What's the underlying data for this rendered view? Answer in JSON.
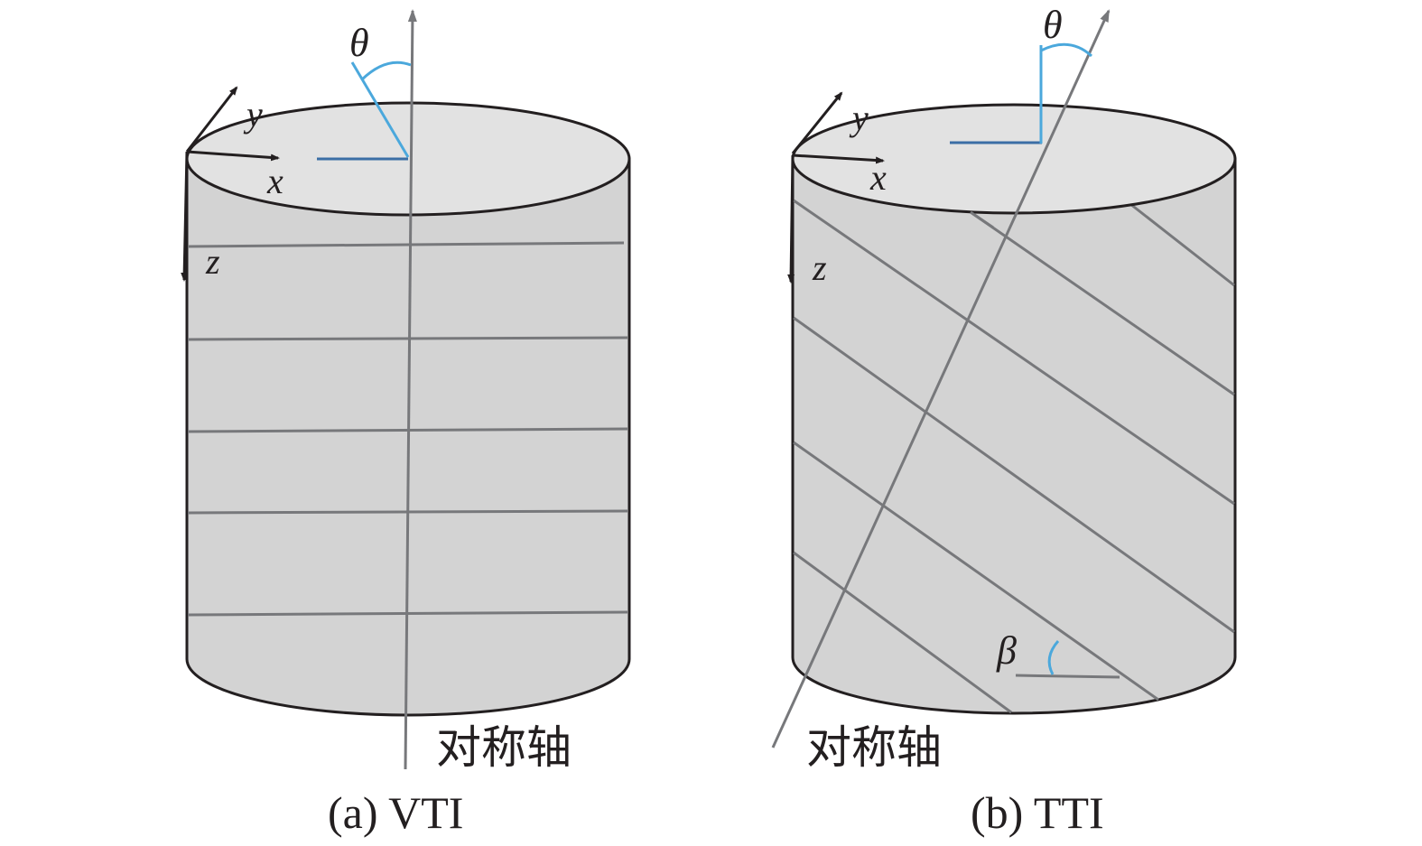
{
  "panels": [
    {
      "caption": "(a) VTI",
      "axis_label": "对称轴",
      "angle_label": "θ",
      "axes": {
        "x": "x",
        "y": "y",
        "z": "z"
      }
    },
    {
      "caption": "(b) TTI",
      "axis_label": "对称轴",
      "angle_label": "θ",
      "axes": {
        "x": "x",
        "y": "y",
        "z": "z"
      },
      "bedding_angle_label": "β"
    }
  ],
  "colors": {
    "body": "#d3d3d3",
    "top": "#e2e2e2",
    "axis": "#77787b",
    "angle_light": "#4ba8dc",
    "angle_dark": "#3b6ea5"
  }
}
